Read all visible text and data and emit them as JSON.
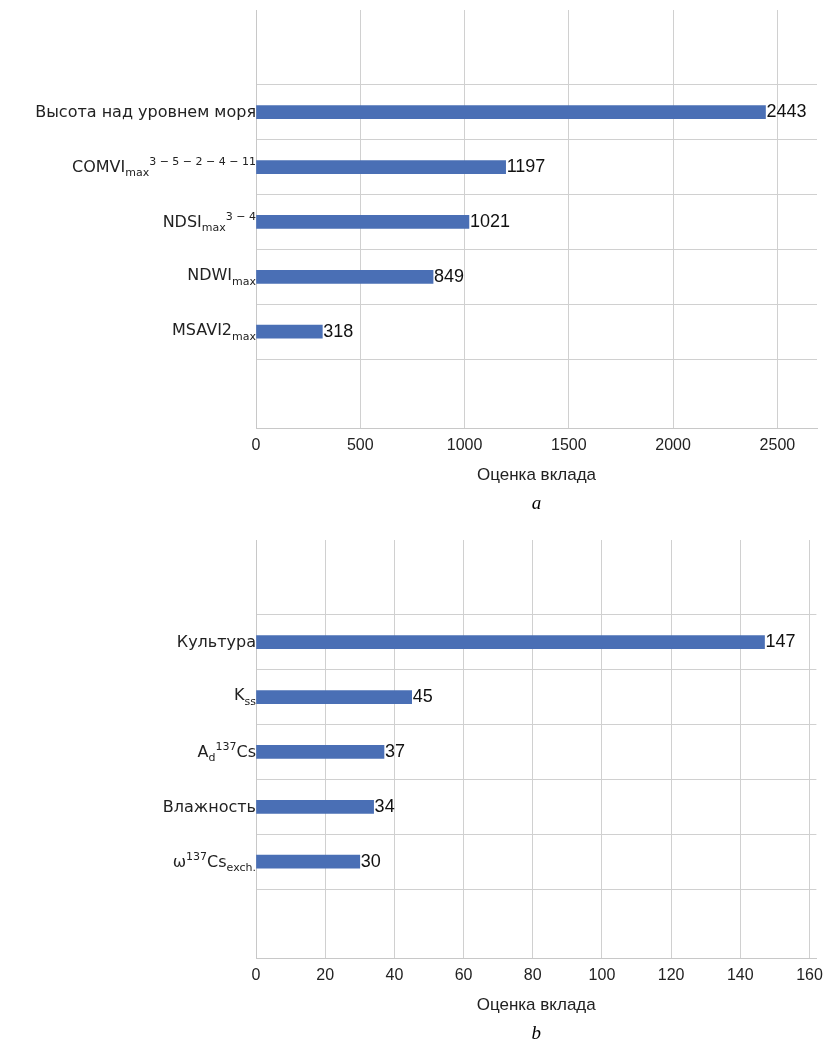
{
  "chart_data": [
    {
      "type": "bar",
      "orientation": "horizontal",
      "categories": [
        "Высота над уровнем моря",
        "COMVI$_{max}$$^{3 − 5 − 2 − 4 − 11}$",
        "NDSI$_{max}$$^{3 − 4}$",
        "NDWI$_{max}$",
        "MSAVI2$_{max}$"
      ],
      "values": [
        2443,
        1197,
        1021,
        849,
        318
      ],
      "color": "#4a6fb5",
      "data_labels": true,
      "xlabel": "Оценка вклада",
      "xlim": [
        0,
        2690
      ],
      "xticks": [
        0,
        500,
        1000,
        1500,
        2000,
        2500
      ],
      "grid": true,
      "legend": false,
      "annotations": [
        "a"
      ]
    },
    {
      "type": "bar",
      "orientation": "horizontal",
      "categories": [
        "Культура",
        "K$_{ss}$",
        "A$_{d}$$^{137}$Cs",
        "Влажность",
        "ω$^{137}$Cs$_{exch.}$"
      ],
      "values": [
        147,
        45,
        37,
        34,
        30
      ],
      "color": "#4a6fb5",
      "data_labels": true,
      "xlabel": "Оценка вклада",
      "xlim": [
        0,
        162
      ],
      "xticks": [
        0,
        20,
        40,
        60,
        80,
        100,
        120,
        140,
        160
      ],
      "grid": true,
      "legend": false,
      "annotations": [
        "b"
      ]
    }
  ]
}
